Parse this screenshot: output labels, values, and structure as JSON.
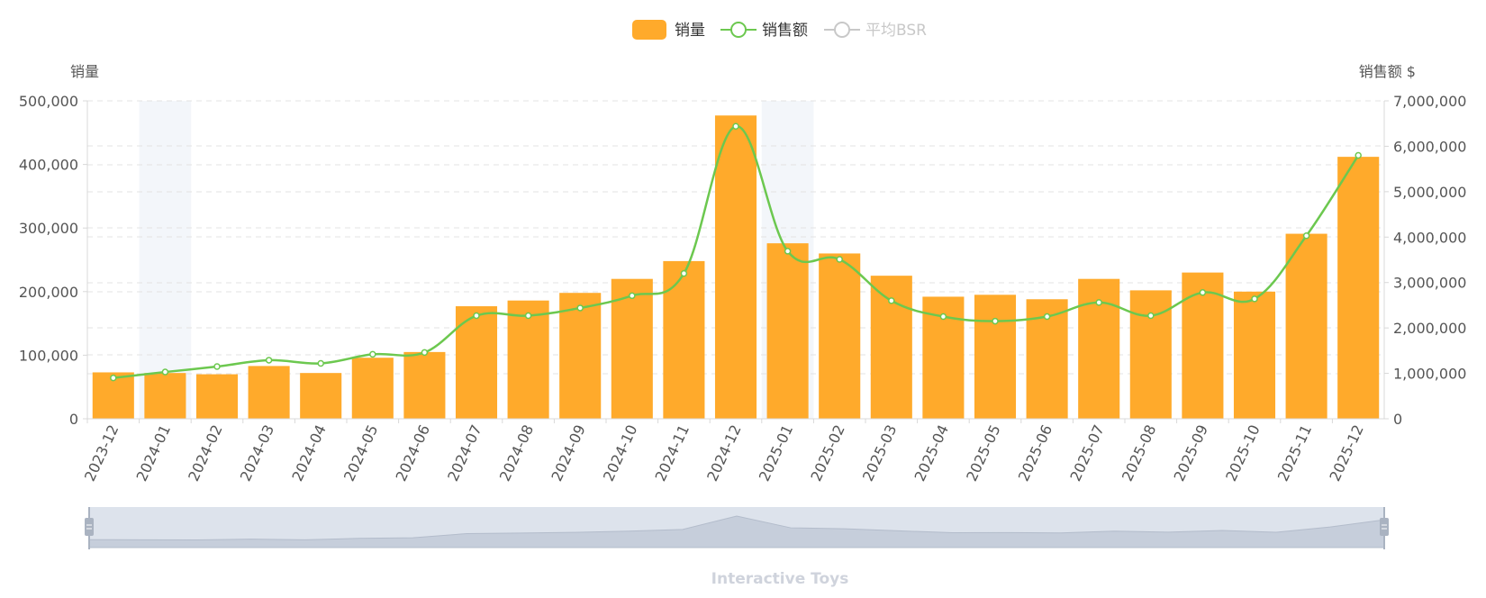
{
  "legend": {
    "items": [
      {
        "label": "销量",
        "color": "#ffaa2b",
        "type": "bar",
        "active": true
      },
      {
        "label": "销售额",
        "color": "#6cc84f",
        "type": "line",
        "active": true
      },
      {
        "label": "平均BSR",
        "color": "#c8c8c8",
        "type": "line",
        "active": false
      }
    ]
  },
  "footer": {
    "label": "Interactive Toys"
  },
  "chart_data": {
    "type": "bar",
    "categories": [
      "2023-12",
      "2024-01",
      "2024-02",
      "2024-03",
      "2024-04",
      "2024-05",
      "2024-06",
      "2024-07",
      "2024-08",
      "2024-09",
      "2024-10",
      "2024-11",
      "2024-12",
      "2025-01",
      "2025-02",
      "2025-03",
      "2025-04",
      "2025-05",
      "2025-06",
      "2025-07",
      "2025-08",
      "2025-09",
      "2025-10",
      "2025-11",
      "2025-12"
    ],
    "series": [
      {
        "name": "销量",
        "type": "bar",
        "axis": "left",
        "color": "#ffaa2b",
        "values": [
          73000,
          72000,
          70000,
          83000,
          72000,
          96000,
          105000,
          177000,
          186000,
          198000,
          220000,
          248000,
          477000,
          276000,
          260000,
          225000,
          192000,
          195000,
          188000,
          220000,
          202000,
          230000,
          200000,
          291000,
          412000
        ]
      },
      {
        "name": "销售额",
        "type": "line",
        "axis": "right",
        "color": "#6cc84f",
        "values": [
          900000,
          1030000,
          1150000,
          1290000,
          1220000,
          1420000,
          1460000,
          2270000,
          2270000,
          2440000,
          2710000,
          3200000,
          6440000,
          3690000,
          3510000,
          2600000,
          2250000,
          2150000,
          2250000,
          2560000,
          2270000,
          2780000,
          2640000,
          4030000,
          5800000
        ]
      }
    ],
    "left_axis": {
      "label": "销量",
      "min": 0,
      "max": 500000,
      "ticks": [
        0,
        100000,
        200000,
        300000,
        400000,
        500000
      ],
      "tick_labels": [
        "0",
        "100,000",
        "200,000",
        "300,000",
        "400,000",
        "500,000"
      ]
    },
    "right_axis": {
      "label": "销售额 $",
      "min": 0,
      "max": 7000000,
      "ticks": [
        0,
        1000000,
        2000000,
        3000000,
        4000000,
        5000000,
        6000000,
        7000000
      ],
      "tick_labels": [
        "0",
        "1,000,000",
        "2,000,000",
        "3,000,000",
        "4,000,000",
        "5,000,000",
        "6,000,000",
        "7,000,000"
      ]
    },
    "highlighted_categories": [
      "2024-01",
      "2025-01"
    ],
    "grid": true,
    "legend_position": "top-center",
    "data_zoom": {
      "start": 0,
      "end": 100
    }
  }
}
